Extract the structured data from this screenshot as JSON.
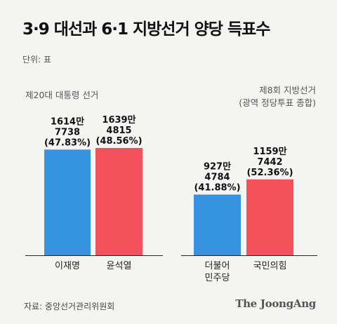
{
  "title": "3·9 대선과 6·1 지방선거 양당 득표수",
  "unit": "단위: 표",
  "source": "자료: 중앙선거관리위원회",
  "brand": "The JoongAng",
  "colors": {
    "blue": "#3593e0",
    "red": "#f3515b"
  },
  "chart_data": [
    {
      "type": "bar",
      "title": "제20대 대통령 선거",
      "categories": [
        "이재명",
        "윤석열"
      ],
      "values": [
        16147738,
        16394815
      ],
      "value_labels": [
        [
          "1614만",
          "7738",
          "(47.83%)"
        ],
        [
          "1639만",
          "4815",
          "(48.56%)"
        ]
      ],
      "shares_percent": [
        47.83,
        48.56
      ],
      "colors": [
        "#3593e0",
        "#f3515b"
      ],
      "ylim": [
        0,
        20000000
      ]
    },
    {
      "type": "bar",
      "title": "제8회 지방선거 (광역 정당투표 종합)",
      "title_lines": [
        "제8회 지방선거",
        "(광역 정당투표 종합)"
      ],
      "categories": [
        "더불어민주당",
        "국민의힘"
      ],
      "category_lines": [
        [
          "더불어",
          "민주당"
        ],
        [
          "국민의힘"
        ]
      ],
      "values": [
        9274784,
        11597442
      ],
      "value_labels": [
        [
          "927만",
          "4784",
          "(41.88%)"
        ],
        [
          "1159만",
          "7442",
          "(52.36%)"
        ]
      ],
      "shares_percent": [
        41.88,
        52.36
      ],
      "colors": [
        "#3593e0",
        "#f3515b"
      ],
      "ylim": [
        0,
        20000000
      ]
    }
  ]
}
